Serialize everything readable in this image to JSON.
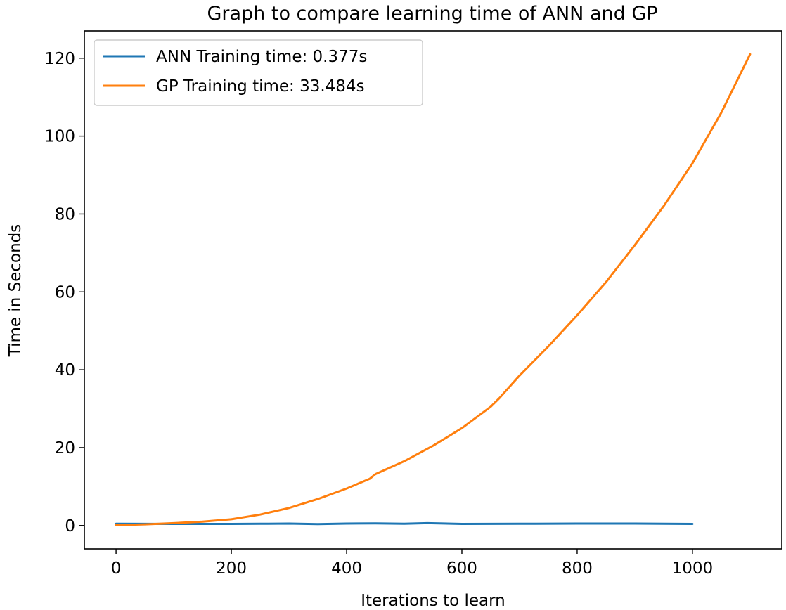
{
  "chart_data": {
    "type": "line",
    "title": "Graph to compare learning time of ANN and GP",
    "xlabel": "Iterations to learn",
    "ylabel": "Time in Seconds",
    "xlim": [
      -55,
      1155
    ],
    "ylim": [
      -6,
      127
    ],
    "xticks": [
      0,
      200,
      400,
      600,
      800,
      1000
    ],
    "xtick_labels": [
      "0",
      "200",
      "400",
      "600",
      "800",
      "1000"
    ],
    "yticks": [
      0,
      20,
      40,
      60,
      80,
      100,
      120
    ],
    "ytick_labels": [
      "0",
      "20",
      "40",
      "60",
      "80",
      "100",
      "120"
    ],
    "grid": false,
    "legend_position": "upper-left",
    "series": [
      {
        "name": "ANN Training time: 0.377s",
        "color": "#1f77b4",
        "x": [
          0,
          100,
          200,
          250,
          300,
          350,
          400,
          450,
          500,
          540,
          600,
          700,
          800,
          900,
          950,
          1000
        ],
        "y": [
          0.45,
          0.4,
          0.4,
          0.45,
          0.5,
          0.35,
          0.5,
          0.55,
          0.45,
          0.6,
          0.4,
          0.45,
          0.5,
          0.5,
          0.45,
          0.4
        ]
      },
      {
        "name": "GP Training time: 33.484s",
        "color": "#ff7f0e",
        "x": [
          0,
          50,
          100,
          150,
          200,
          250,
          300,
          350,
          400,
          440,
          450,
          500,
          550,
          600,
          650,
          665,
          700,
          750,
          800,
          850,
          900,
          950,
          1000,
          1050,
          1100
        ],
        "y": [
          0.1,
          0.3,
          0.6,
          1.0,
          1.6,
          2.8,
          4.5,
          6.8,
          9.5,
          12.0,
          13.2,
          16.5,
          20.5,
          25.0,
          30.5,
          32.7,
          38.5,
          46.0,
          54.0,
          62.5,
          72.0,
          82.0,
          93.0,
          106.0,
          121.0
        ]
      }
    ]
  }
}
